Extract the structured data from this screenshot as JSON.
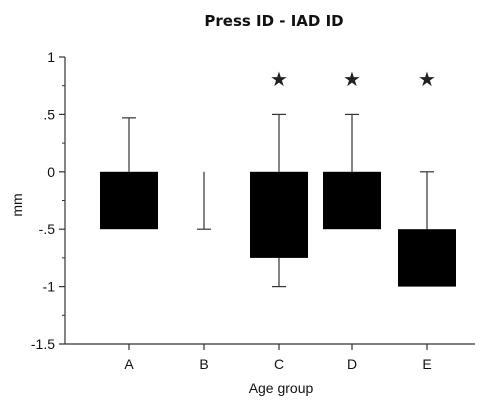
{
  "chart_data": {
    "type": "bar",
    "title": "Press ID - IAD ID",
    "xlabel": "Age group",
    "ylabel": "mm",
    "categories": [
      "A",
      "B",
      "C",
      "D",
      "E"
    ],
    "series": [
      {
        "values": [
          -0.5,
          0,
          -0.75,
          -0.5,
          -1.0
        ],
        "error_upper": [
          0.47,
          0,
          0.5,
          0.5,
          0
        ],
        "error_lower": [
          -0.5,
          -0.5,
          -1.0,
          -0.5,
          -1.0
        ]
      }
    ],
    "bar_base": [
      0,
      0,
      0,
      0,
      -0.5
    ],
    "significant": [
      false,
      false,
      true,
      true,
      true
    ],
    "significance_marker": "★",
    "ylim": [
      -1.5,
      1
    ],
    "yticks": [
      1,
      0.5,
      0,
      -0.5,
      -1,
      -1.5
    ],
    "ytick_labels": [
      "1",
      ".5",
      "0",
      "-.5",
      "-1",
      "-1.5"
    ],
    "grid": false,
    "bar_color": "#000000",
    "axis_color": "#333333"
  }
}
